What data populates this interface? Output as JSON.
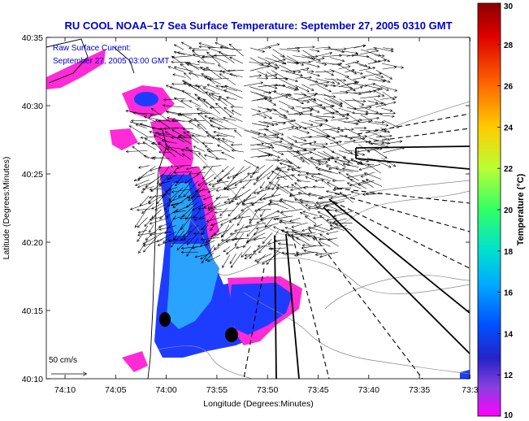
{
  "title": "RU COOL  NOAA–17  Sea Surface Temperature:  September 27, 2005 0310 GMT",
  "annotation": {
    "line1": "Raw Surface Current:",
    "line2": "September 27, 2005 03:00 GMT"
  },
  "xaxis": {
    "label": "Longitude (Degrees:Minutes)",
    "ticks": [
      "74:10",
      "74:05",
      "74:00",
      "73:55",
      "73:50",
      "73:45",
      "73:40",
      "73:35",
      "73:3"
    ]
  },
  "yaxis": {
    "label": "Latitude (Degrees:Minutes)",
    "ticks": [
      "40:35",
      "40:30",
      "40:25",
      "40:20",
      "40:15",
      "40:10"
    ]
  },
  "scale_arrow": {
    "label": "50 cm/s"
  },
  "colorbar": {
    "label": "Temperature (°C)",
    "ticks": [
      "30",
      "28",
      "26",
      "24",
      "22",
      "20",
      "18",
      "16",
      "14",
      "12",
      "10"
    ],
    "colors": [
      "#8b0000",
      "#e60000",
      "#ff6a00",
      "#ffcc00",
      "#ccff33",
      "#33ff66",
      "#00e6cc",
      "#00bfff",
      "#0066ff",
      "#2020c8",
      "#7a3fd0",
      "#ff00ff"
    ]
  },
  "colors": {
    "land": "#ffffff",
    "water_blue": "#1e3cff",
    "water_cyan": "#29a3ff",
    "warm_magenta": "#ff2bd6"
  }
}
